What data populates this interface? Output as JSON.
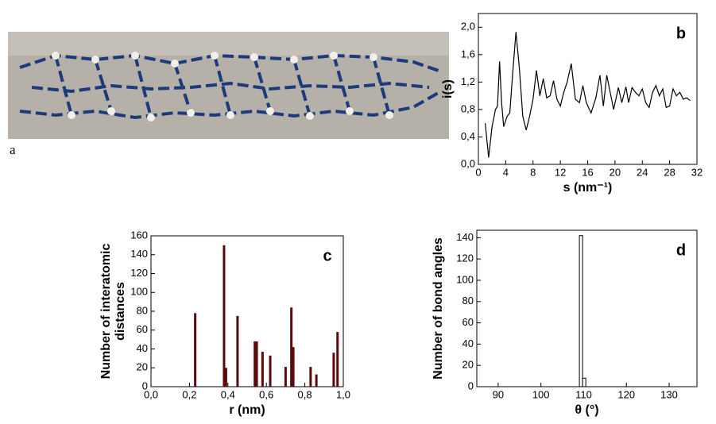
{
  "photo_label": "a",
  "chart_data": [
    {
      "type": "line",
      "panel": "b",
      "ylabel": "i(s)",
      "xlabel": "s (nm⁻¹)",
      "color": "#000000",
      "xlim": [
        0,
        32
      ],
      "xticks": [
        0,
        4,
        8,
        12,
        16,
        20,
        24,
        28,
        32
      ],
      "ylim": [
        0,
        2.2
      ],
      "yticks": [
        {
          "value": 0,
          "label": "0,0"
        },
        {
          "value": 0.4,
          "label": "0,4"
        },
        {
          "value": 0.8,
          "label": "0,8"
        },
        {
          "value": 1.2,
          "label": "1,2"
        },
        {
          "value": 1.6,
          "label": "1,6"
        },
        {
          "value": 2.0,
          "label": "2,0"
        }
      ],
      "x": [
        1.0,
        1.5,
        2.0,
        2.5,
        2.8,
        3.1,
        3.4,
        3.7,
        4.2,
        4.6,
        5.0,
        5.5,
        6.0,
        6.5,
        7.0,
        7.5,
        8.0,
        8.5,
        9.0,
        9.5,
        10.0,
        10.5,
        11.0,
        11.5,
        12.0,
        12.5,
        13.0,
        13.6,
        14.2,
        14.8,
        15.3,
        15.8,
        16.5,
        17.2,
        17.8,
        18.3,
        18.8,
        19.3,
        19.8,
        20.5,
        21.0,
        21.6,
        22.0,
        22.5,
        23.0,
        23.5,
        24.0,
        24.5,
        25.0,
        25.5,
        26.0,
        26.5,
        27.0,
        27.5,
        28.0,
        28.5,
        29.0,
        29.5,
        30.0,
        30.5,
        31.0
      ],
      "values": [
        0.6,
        0.1,
        0.55,
        0.8,
        0.85,
        1.5,
        0.9,
        0.55,
        0.7,
        0.75,
        1.3,
        1.93,
        1.4,
        0.7,
        0.5,
        0.7,
        0.95,
        1.37,
        1.0,
        1.25,
        0.97,
        1.0,
        1.22,
        0.95,
        0.85,
        1.05,
        1.2,
        1.47,
        0.95,
        0.9,
        1.15,
        0.9,
        0.75,
        0.97,
        1.3,
        0.85,
        1.3,
        1.05,
        0.8,
        1.12,
        0.9,
        1.13,
        0.9,
        1.12,
        1.05,
        1.0,
        1.1,
        0.9,
        0.83,
        1.05,
        1.15,
        1.0,
        1.1,
        0.83,
        0.85,
        1.1,
        1.0,
        1.05,
        0.95,
        0.97,
        0.93
      ]
    },
    {
      "type": "bar",
      "panel": "c",
      "ylabel": [
        "Number of interatomic",
        "distances"
      ],
      "xlabel": "r (nm)",
      "color": "#5a0a0a",
      "xlim": [
        0,
        1.0
      ],
      "xticks": [
        {
          "value": 0,
          "label": "0,0"
        },
        {
          "value": 0.2,
          "label": "0,2"
        },
        {
          "value": 0.4,
          "label": "0,4"
        },
        {
          "value": 0.6,
          "label": "0,6"
        },
        {
          "value": 0.8,
          "label": "0,8"
        },
        {
          "value": 1.0,
          "label": "1,0"
        }
      ],
      "ylim": [
        0,
        160
      ],
      "yticks": [
        0,
        20,
        40,
        60,
        80,
        100,
        120,
        140,
        160
      ],
      "x": [
        0.23,
        0.38,
        0.39,
        0.45,
        0.54,
        0.55,
        0.58,
        0.62,
        0.7,
        0.73,
        0.74,
        0.83,
        0.86,
        0.95,
        0.97
      ],
      "values": [
        78,
        150,
        20,
        75,
        48,
        48,
        37,
        33,
        21,
        84,
        42,
        21,
        13,
        36,
        58
      ]
    },
    {
      "type": "histogram",
      "panel": "d",
      "ylabel": "Number of bond angles",
      "xlabel": "θ (°)",
      "color": "#ffffff",
      "xlim": [
        85,
        136.5
      ],
      "xticks": [
        90,
        100,
        110,
        120,
        130
      ],
      "ylim": [
        0,
        147
      ],
      "yticks": [
        0,
        20,
        40,
        60,
        80,
        100,
        120,
        140
      ],
      "bins": [
        109,
        109.75,
        110.5
      ],
      "counts": [
        142,
        8
      ]
    }
  ]
}
